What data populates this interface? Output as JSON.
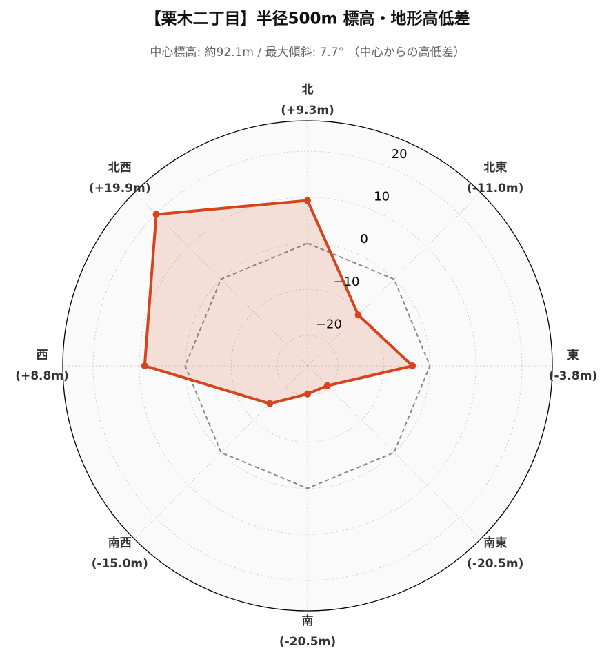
{
  "chart_data": {
    "type": "radar",
    "title": "【栗木二丁目】半径500m 標高・地形高低差",
    "subtitle": "中心標高: 約92.1m / 最大傾斜: 7.7° （中心からの高低差）",
    "categories": [
      "北",
      "北東",
      "東",
      "南東",
      "南",
      "南西",
      "西",
      "北西"
    ],
    "series": [
      {
        "color": "#d5441c",
        "values": [
          9.3,
          -11.0,
          -3.8,
          -20.5,
          -20.5,
          -15.0,
          8.8,
          19.9
        ],
        "value_labels": [
          "(+9.3m)",
          "(-11.0m)",
          "(-3.8m)",
          "(-20.5m)",
          "(-20.5m)",
          "(-15.0m)",
          "(+8.8m)",
          "(+19.9m)"
        ]
      }
    ],
    "baseline": 0,
    "ylim": [
      -26.6,
      26.6
    ],
    "yticks": [
      {
        "value": -20,
        "label": "−20"
      },
      {
        "value": -10,
        "label": "−10"
      },
      0,
      10,
      20
    ],
    "grid": true
  }
}
